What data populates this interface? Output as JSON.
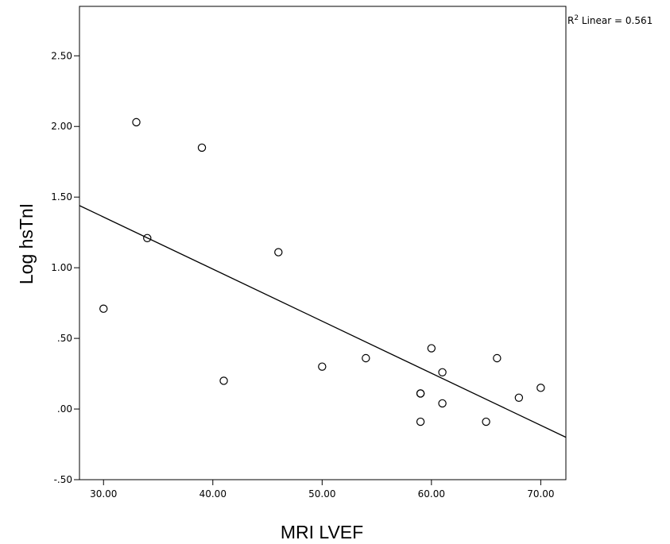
{
  "chart_data": {
    "type": "scatter",
    "title": "",
    "xlabel": "MRI LVEF",
    "ylabel": "Log hsTnI",
    "xlim": [
      27.8,
      72.3
    ],
    "ylim": [
      -0.5,
      2.85
    ],
    "x_ticks": [
      30,
      40,
      50,
      60,
      70
    ],
    "x_tick_labels": [
      "30.00",
      "40.00",
      "50.00",
      "60.00",
      "70.00"
    ],
    "y_ticks": [
      -0.5,
      0,
      0.5,
      1,
      1.5,
      2,
      2.5
    ],
    "y_tick_labels": [
      "-.50",
      ".00",
      ".50",
      "1.00",
      "1.50",
      "2.00",
      "2.50"
    ],
    "grid": false,
    "points": [
      {
        "x": 30,
        "y": 0.71
      },
      {
        "x": 33,
        "y": 2.03
      },
      {
        "x": 34,
        "y": 1.21
      },
      {
        "x": 39,
        "y": 1.85
      },
      {
        "x": 41,
        "y": 0.2
      },
      {
        "x": 46,
        "y": 1.11
      },
      {
        "x": 50,
        "y": 0.3
      },
      {
        "x": 54,
        "y": 0.36
      },
      {
        "x": 59,
        "y": 0.11
      },
      {
        "x": 59,
        "y": 0.11
      },
      {
        "x": 59,
        "y": -0.09
      },
      {
        "x": 60,
        "y": 0.43
      },
      {
        "x": 61,
        "y": 0.26
      },
      {
        "x": 61,
        "y": 0.04
      },
      {
        "x": 65,
        "y": -0.09
      },
      {
        "x": 66,
        "y": 0.36
      },
      {
        "x": 68,
        "y": 0.08
      },
      {
        "x": 70,
        "y": 0.15
      }
    ],
    "fit_line": {
      "type": "linear",
      "points": [
        {
          "x": 27.8,
          "y": 1.44
        },
        {
          "x": 72.3,
          "y": -0.2
        }
      ],
      "label": "R² Linear = 0.561",
      "label_base": "R",
      "label_sup": "2",
      "label_rest": " Linear = 0.561"
    },
    "colors": {
      "marker": "#000000",
      "line": "#000000",
      "background": "#ffffff"
    }
  }
}
